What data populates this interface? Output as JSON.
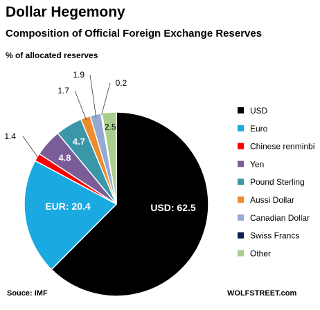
{
  "header": {
    "title": "Dollar Hegemony",
    "subtitle": "Composition of Official Foreign Exchange Reserves",
    "unit_note": "% of allocated reserves"
  },
  "footer": {
    "source": "Souce: IMF",
    "brand": "WOLFSTREET.com"
  },
  "chart_data": {
    "type": "pie",
    "title": "Composition of Official Foreign Exchange Reserves",
    "slices": [
      {
        "name": "USD",
        "value": 62.5,
        "label": "USD: 62.5",
        "color": "#000000"
      },
      {
        "name": "Euro",
        "value": 20.4,
        "label": "EUR: 20.4",
        "color": "#1ba9e1"
      },
      {
        "name": "Chinese renminbi",
        "value": 1.4,
        "label": "1.4",
        "color": "#ff0000"
      },
      {
        "name": "Yen",
        "value": 4.8,
        "label": "4.8",
        "color": "#7a5c99"
      },
      {
        "name": "Pound Sterling",
        "value": 4.7,
        "label": "4.7",
        "color": "#3a97a8"
      },
      {
        "name": "Aussi Dollar",
        "value": 1.7,
        "label": "1.7",
        "color": "#ef8a2d"
      },
      {
        "name": "Canadian Dollar",
        "value": 1.9,
        "label": "1.9",
        "color": "#94a9d4"
      },
      {
        "name": "Swiss Francs",
        "value": 0.2,
        "label": "0.2",
        "color": "#0c1f4f"
      },
      {
        "name": "Other",
        "value": 2.5,
        "label": "2.5",
        "color": "#a9cd8a"
      }
    ],
    "legend_position": "right"
  }
}
